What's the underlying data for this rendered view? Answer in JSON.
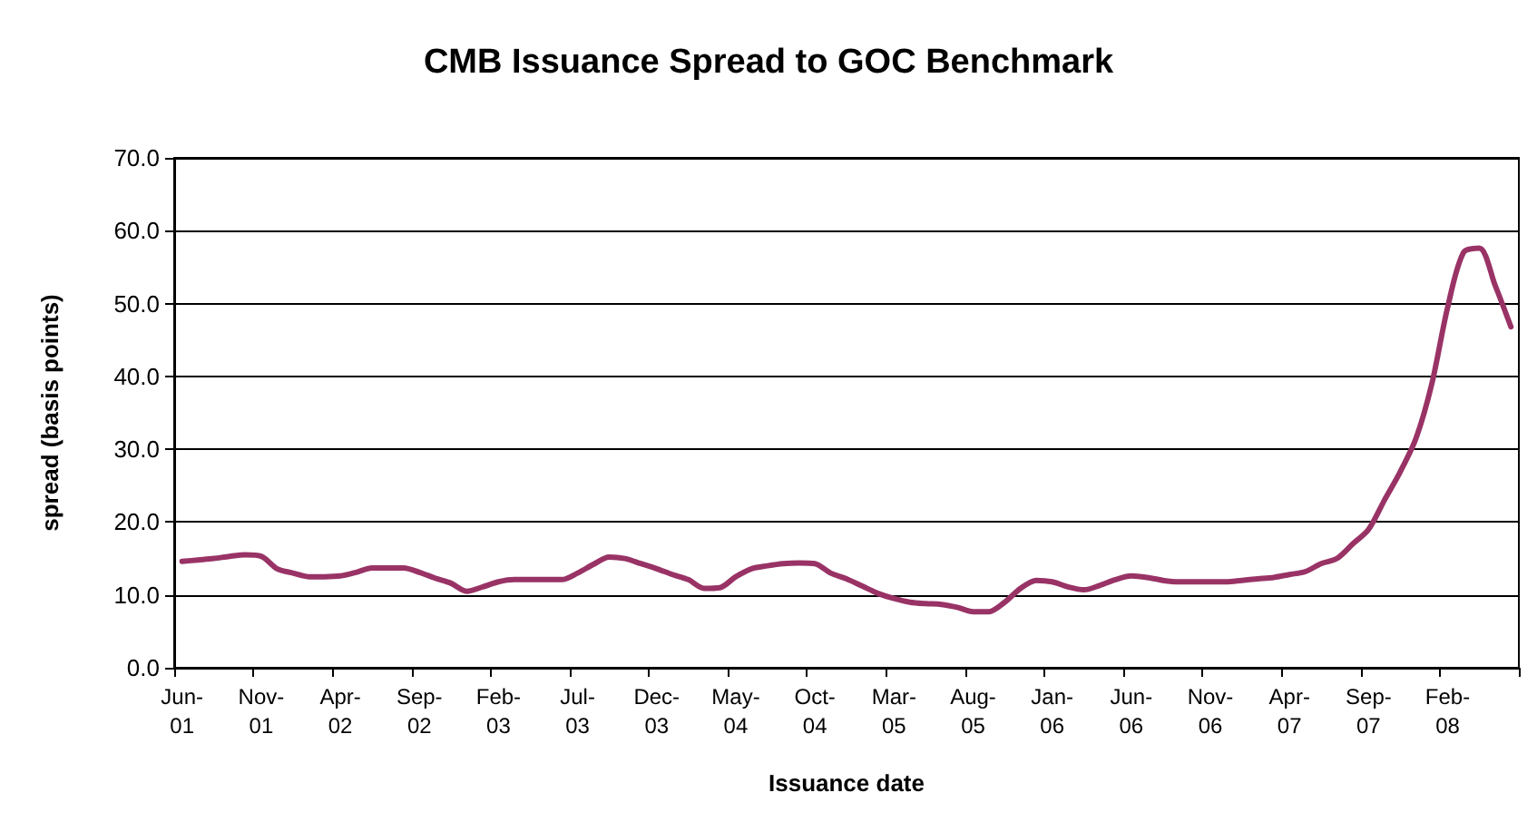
{
  "chart_data": {
    "type": "line",
    "title": "CMB Issuance Spread to GOC Benchmark",
    "xlabel": "Issuance date",
    "ylabel": "spread (basis points)",
    "categories": [
      "Jun-01",
      null,
      null,
      null,
      null,
      "Nov-01",
      null,
      null,
      null,
      null,
      "Apr-02",
      null,
      null,
      null,
      null,
      "Sep-02",
      null,
      null,
      null,
      null,
      "Feb-03",
      null,
      null,
      null,
      null,
      "Jul-03",
      null,
      null,
      null,
      null,
      "Dec-03",
      null,
      null,
      null,
      null,
      "May-04",
      null,
      null,
      null,
      null,
      "Oct-04",
      null,
      null,
      null,
      null,
      "Mar-05",
      null,
      null,
      null,
      null,
      "Aug-05",
      null,
      null,
      null,
      null,
      "Jan-06",
      null,
      null,
      null,
      null,
      "Jun-06",
      null,
      null,
      null,
      null,
      "Nov-06",
      null,
      null,
      null,
      null,
      "Apr-07",
      null,
      null,
      null,
      null,
      "Sep-07",
      null,
      null,
      null,
      null,
      "Feb-08",
      null,
      null,
      null,
      null
    ],
    "series": [
      {
        "color": "#993366",
        "values": [
          14.6,
          14.8,
          15.0,
          15.3,
          15.5,
          15.3,
          13.6,
          13.0,
          12.5,
          12.5,
          12.6,
          13.1,
          13.7,
          13.7,
          13.7,
          13.1,
          12.3,
          11.6,
          10.5,
          11.1,
          11.8,
          12.1,
          12.1,
          12.1,
          12.1,
          13.0,
          14.2,
          15.2,
          15.0,
          14.3,
          13.6,
          12.8,
          12.1,
          10.9,
          11.0,
          12.5,
          13.6,
          14.0,
          14.3,
          14.4,
          14.3,
          13.0,
          12.2,
          11.2,
          10.2,
          9.5,
          9.0,
          8.8,
          8.7,
          8.3,
          7.7,
          7.7,
          9.0,
          10.9,
          12.0,
          11.8,
          11.1,
          10.7,
          11.3,
          12.1,
          12.6,
          12.4,
          12.0,
          11.8,
          11.8,
          11.8,
          11.8,
          12.0,
          12.2,
          12.4,
          12.8,
          13.2,
          14.3,
          15.0,
          17.0,
          19.0,
          23.0,
          26.9,
          31.5,
          39.0,
          49.5,
          57.0,
          57.6,
          52.5,
          46.8
        ]
      }
    ],
    "ylim": [
      0,
      70
    ],
    "yticks": [
      {
        "value": 0,
        "label": "0.0"
      },
      {
        "value": 10,
        "label": "10.0"
      },
      {
        "value": 20,
        "label": "20.0"
      },
      {
        "value": 30,
        "label": "30.0"
      },
      {
        "value": 40,
        "label": "40.0"
      },
      {
        "value": 50,
        "label": "50.0"
      },
      {
        "value": 60,
        "label": "60.0"
      },
      {
        "value": 70,
        "label": "70.0"
      }
    ],
    "grid": "y",
    "marker": "none",
    "line_style": "solid"
  }
}
